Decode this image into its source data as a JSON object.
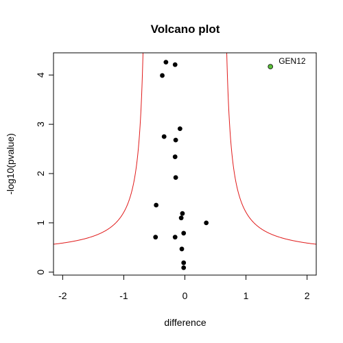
{
  "chart_data": {
    "type": "scatter",
    "title": "Volcano plot",
    "xlabel": "difference",
    "ylabel": "-log10(pvalue)",
    "xlim": [
      -2.15,
      2.15
    ],
    "ylim": [
      -0.06,
      4.45
    ],
    "x_ticks": [
      -2,
      -1,
      0,
      1,
      2
    ],
    "y_ticks": [
      0,
      1,
      2,
      3,
      4
    ],
    "point_color": "#000000",
    "highlight_color": "#5bbf3a",
    "curve_color": "#e01818",
    "points": [
      {
        "x": -0.31,
        "y": 4.26
      },
      {
        "x": -0.16,
        "y": 4.21
      },
      {
        "x": -0.37,
        "y": 3.99
      },
      {
        "x": -0.08,
        "y": 2.91
      },
      {
        "x": -0.34,
        "y": 2.75
      },
      {
        "x": -0.15,
        "y": 2.68
      },
      {
        "x": -0.16,
        "y": 2.34
      },
      {
        "x": -0.15,
        "y": 1.92
      },
      {
        "x": -0.47,
        "y": 1.36
      },
      {
        "x": -0.04,
        "y": 1.19
      },
      {
        "x": -0.06,
        "y": 1.1
      },
      {
        "x": 0.35,
        "y": 1.0
      },
      {
        "x": -0.02,
        "y": 0.79
      },
      {
        "x": -0.48,
        "y": 0.71
      },
      {
        "x": -0.16,
        "y": 0.71
      },
      {
        "x": -0.05,
        "y": 0.47
      },
      {
        "x": -0.02,
        "y": 0.19
      },
      {
        "x": -0.02,
        "y": 0.09
      }
    ],
    "highlight": {
      "x": 1.4,
      "y": 4.17,
      "label": "GEN12"
    },
    "threshold_curve": {
      "shape": "y = 0.35 / (|x| - 0.60) + 0.34",
      "asymptote_x": 0.6
    }
  }
}
